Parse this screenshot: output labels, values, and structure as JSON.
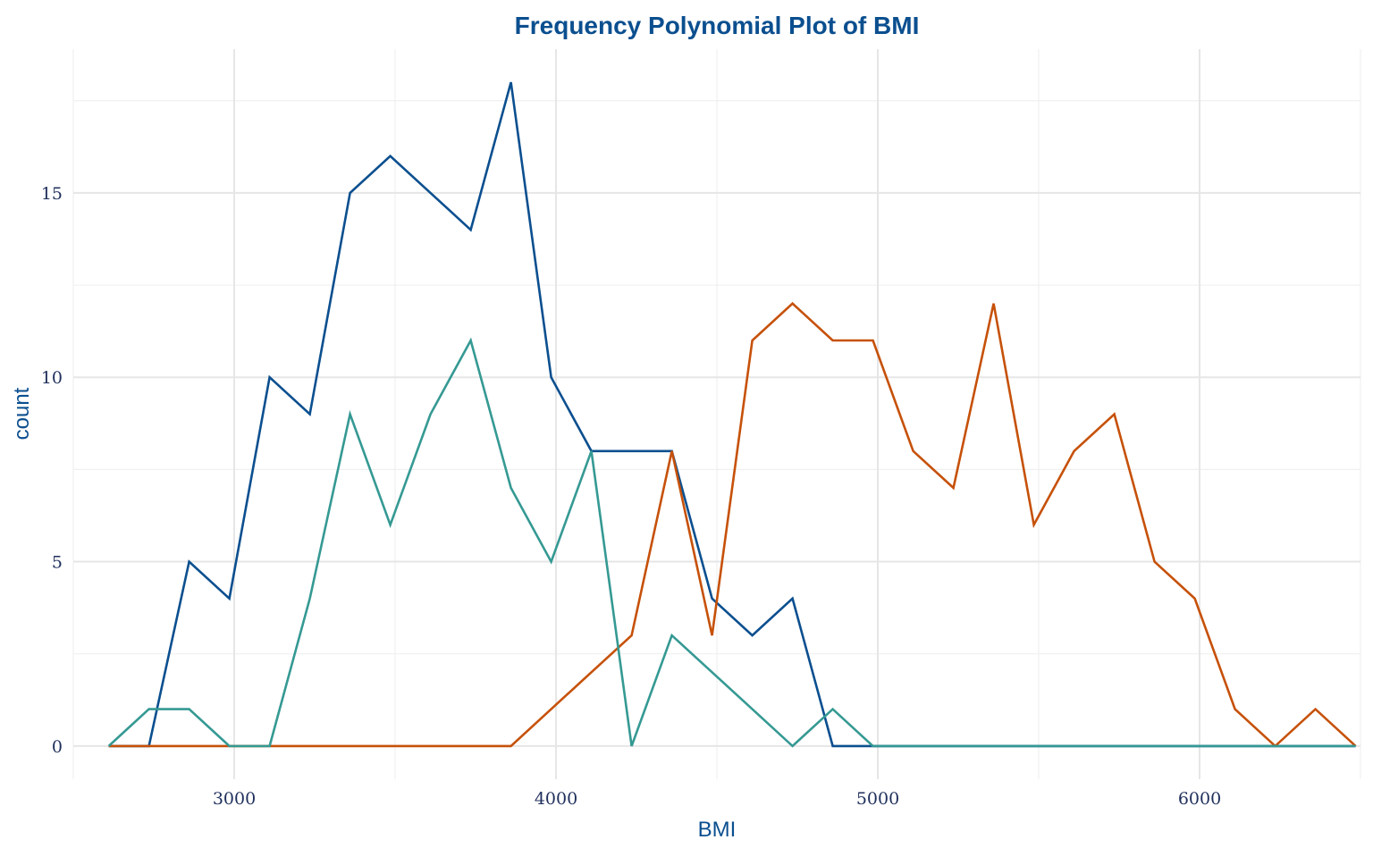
{
  "chart_data": {
    "type": "line",
    "title": "Frequency Polynomial Plot of BMI",
    "xlabel": "BMI",
    "ylabel": "count",
    "xlim": [
      2500,
      6500
    ],
    "ylim": [
      -0.9,
      18.9
    ],
    "x_ticks": [
      3000,
      4000,
      5000,
      6000
    ],
    "x_tick_labels": [
      "3000",
      "4000",
      "5000",
      "6000"
    ],
    "y_ticks": [
      0,
      5,
      10,
      15
    ],
    "y_tick_labels": [
      "0",
      "5",
      "10",
      "15"
    ],
    "grid": true,
    "legend": "none",
    "x": [
      2610,
      2735,
      2860,
      2985,
      3110,
      3235,
      3360,
      3485,
      3610,
      3735,
      3860,
      3985,
      4110,
      4235,
      4360,
      4485,
      4610,
      4735,
      4860,
      4985,
      5110,
      5235,
      5360,
      5485,
      5610,
      5735,
      5860,
      5985,
      6110,
      6235,
      6360,
      6485
    ],
    "series": [
      {
        "color": "#0b4f8f",
        "values": [
          0,
          0,
          5,
          4,
          10,
          9,
          15,
          16,
          15,
          14,
          18,
          10,
          8,
          8,
          8,
          4,
          3,
          4,
          0,
          0,
          0,
          0,
          0,
          0,
          0,
          0,
          0,
          0,
          0,
          0,
          0,
          0
        ]
      },
      {
        "color": "#c65109",
        "values": [
          0,
          0,
          0,
          0,
          0,
          0,
          0,
          0,
          0,
          0,
          0,
          1,
          2,
          3,
          8,
          3,
          11,
          12,
          11,
          11,
          8,
          7,
          12,
          6,
          8,
          9,
          5,
          4,
          1,
          0,
          1,
          0
        ]
      },
      {
        "color": "#359993",
        "values": [
          0,
          1,
          1,
          0,
          0,
          4,
          9,
          6,
          9,
          11,
          7,
          5,
          8,
          0,
          3,
          2,
          1,
          0,
          1,
          0,
          0,
          0,
          0,
          0,
          0,
          0,
          0,
          0,
          0,
          0,
          0,
          0
        ]
      }
    ]
  },
  "colors": {
    "title": "#0b4f8f",
    "axis_title": "#0b4f8f",
    "tick_label": "#1f2f5c"
  }
}
